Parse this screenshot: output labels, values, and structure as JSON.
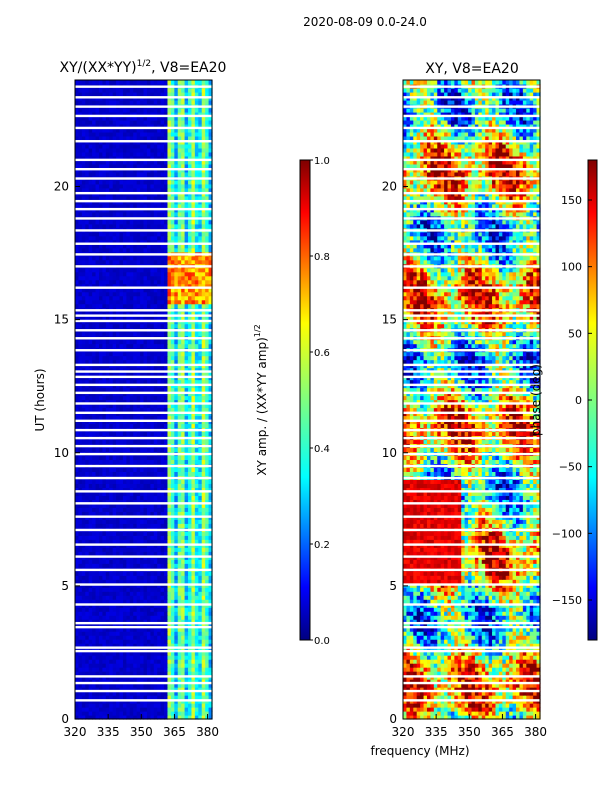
{
  "figure": {
    "suptitle": "2020-08-09 0.0-24.0",
    "xlabel": "frequency (MHz)"
  },
  "chart_data": [
    {
      "type": "heatmap",
      "title": "XY/(XX*YY)^{1/2}, V8=EA20",
      "title_main": "XY/(XX*YY)",
      "title_sup": "1/2",
      "title_tail": ", V8=EA20",
      "xlabel": "frequency (MHz)",
      "ylabel": "UT (hours)",
      "xlim": [
        320,
        382
      ],
      "ylim": [
        0,
        24
      ],
      "xticks": [
        320,
        335,
        350,
        365,
        380
      ],
      "yticks": [
        0,
        5,
        10,
        15,
        20
      ],
      "colormap": "jet",
      "colorbar": {
        "label_main": "XY amp. / (XX*YY amp)",
        "label_sup": "1/2",
        "range": [
          0.0,
          1.0
        ],
        "ticks": [
          "0.0",
          "0.2",
          "0.4",
          "0.6",
          "0.8",
          "1.0"
        ],
        "tick_values": [
          0.0,
          0.2,
          0.4,
          0.6,
          0.8,
          1.0
        ]
      },
      "description_values": {
        "low_band_mhz": [
          320,
          361
        ],
        "low_band_value": 0.05,
        "high_band_mhz": [
          361,
          382
        ],
        "high_band_value_range": [
          0.3,
          0.55
        ],
        "peak_ut_range": [
          15.5,
          17.5
        ],
        "peak_value": 0.85
      }
    },
    {
      "type": "heatmap",
      "title": "XY, V8=EA20",
      "xlabel": "frequency (MHz)",
      "ylabel": "phase (deg)",
      "xlim": [
        320,
        382
      ],
      "ylim": [
        0,
        24
      ],
      "xticks": [
        320,
        335,
        350,
        365,
        380
      ],
      "yticks": [
        0,
        5,
        10,
        15,
        20
      ],
      "colormap": "jet",
      "colorbar": {
        "label": "phase (deg)",
        "range": [
          -180,
          180
        ],
        "ticks": [
          "150",
          "100",
          "50",
          "0",
          "−50",
          "−100",
          "−150"
        ],
        "tick_values": [
          150,
          100,
          50,
          0,
          -50,
          -100,
          -150
        ]
      }
    }
  ],
  "flag_gaps_ut": [
    0.7,
    1.05,
    1.35,
    1.6,
    2.55,
    2.68,
    3.45,
    3.6,
    4.3,
    5.05,
    5.6,
    6.1,
    6.55,
    7.1,
    7.6,
    8.1,
    8.55,
    9.05,
    9.5,
    9.95,
    10.25,
    10.55,
    10.85,
    11.2,
    11.5,
    11.85,
    12.25,
    12.55,
    12.85,
    13.05,
    13.3,
    13.85,
    14.3,
    14.6,
    14.95,
    15.15,
    15.35,
    16.2,
    17.0,
    17.45,
    17.85,
    18.35,
    18.8,
    19.15,
    19.45,
    19.75,
    20.3,
    20.65,
    21.0,
    21.7,
    22.2,
    22.65,
    23.0,
    23.35,
    23.75
  ]
}
